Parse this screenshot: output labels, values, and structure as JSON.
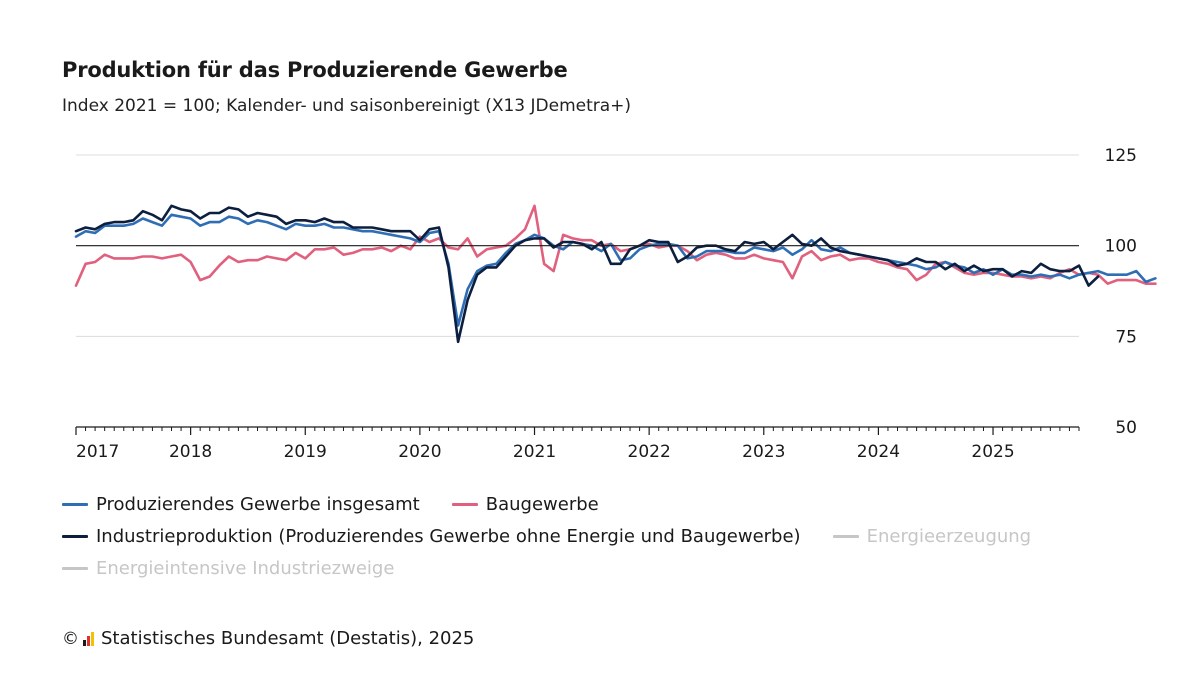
{
  "header": {
    "title": "Produktion für das Produzierende Gewerbe",
    "subtitle": "Index 2021 = 100; Kalender- und saisonbereinigt (X13 JDemetra+)"
  },
  "legend": {
    "items": [
      {
        "label": "Produzierendes Gewerbe insgesamt",
        "color": "#2f6eb5",
        "active": true
      },
      {
        "label": "Baugewerbe",
        "color": "#e0607e",
        "active": true
      },
      {
        "label": "Industrieproduktion (Produzierendes Gewerbe ohne Energie und Baugewerbe)",
        "color": "#0c1f3f",
        "active": true
      },
      {
        "label": "Energieerzeugung",
        "color": "#c6c6c6",
        "active": false
      },
      {
        "label": "Energieintensive Industriezweige",
        "color": "#c6c6c6",
        "active": false
      }
    ]
  },
  "footer": {
    "copyright_symbol": "©",
    "source": "Statistisches Bundesamt (Destatis), 2025"
  },
  "chart_data": {
    "type": "line",
    "x_start": "2017-01",
    "x_frequency": "monthly",
    "x_tick_labels": [
      "2017",
      "2018",
      "2019",
      "2020",
      "2021",
      "2022",
      "2023",
      "2024",
      "2025"
    ],
    "y_ticks": [
      50,
      75,
      100,
      125
    ],
    "ylim": [
      50,
      125
    ],
    "reference_line": 100,
    "grid": true,
    "series": [
      {
        "name": "Produzierendes Gewerbe insgesamt",
        "color": "#2f6eb5",
        "values": [
          102.5,
          104.0,
          103.5,
          105.5,
          105.5,
          105.5,
          106.0,
          107.5,
          106.5,
          105.5,
          108.5,
          108.0,
          107.5,
          105.5,
          106.5,
          106.5,
          108.0,
          107.5,
          106.0,
          107.0,
          106.5,
          105.5,
          104.5,
          106.0,
          105.5,
          105.5,
          106.0,
          105.0,
          105.0,
          104.5,
          104.0,
          104.0,
          103.5,
          103.0,
          102.5,
          102.0,
          101.0,
          103.5,
          104.0,
          95.0,
          78.0,
          88.0,
          93.0,
          94.5,
          95.0,
          98.0,
          100.5,
          101.5,
          103.0,
          102.0,
          100.0,
          99.0,
          101.0,
          100.5,
          100.0,
          98.5,
          100.5,
          96.0,
          96.5,
          99.0,
          100.0,
          100.5,
          100.5,
          100.0,
          96.5,
          97.0,
          98.5,
          98.5,
          98.5,
          98.0,
          98.0,
          99.5,
          99.0,
          98.5,
          99.5,
          97.5,
          99.0,
          101.5,
          99.0,
          98.5,
          99.5,
          98.0,
          97.5,
          97.0,
          96.5,
          96.0,
          95.5,
          95.0,
          94.5,
          93.5,
          94.0,
          95.5,
          94.5,
          94.0,
          92.5,
          93.5,
          92.0,
          93.5,
          92.0,
          92.0,
          91.5,
          92.0,
          91.5,
          92.0,
          91.0,
          92.0,
          92.5,
          93.0,
          92.0,
          92.0,
          92.0,
          93.0,
          90.0,
          91.0
        ]
      },
      {
        "name": "Baugewerbe",
        "color": "#e0607e",
        "values": [
          89.0,
          95.0,
          95.5,
          97.5,
          96.5,
          96.5,
          96.5,
          97.0,
          97.0,
          96.5,
          97.0,
          97.5,
          95.5,
          90.5,
          91.5,
          94.5,
          97.0,
          95.5,
          96.0,
          96.0,
          97.0,
          96.5,
          96.0,
          98.0,
          96.5,
          99.0,
          99.0,
          99.5,
          97.5,
          98.0,
          99.0,
          99.0,
          99.5,
          98.5,
          100.0,
          99.0,
          102.5,
          101.0,
          102.0,
          99.5,
          99.0,
          102.0,
          97.0,
          99.0,
          99.5,
          100.0,
          102.0,
          104.5,
          111.0,
          95.0,
          93.0,
          103.0,
          102.0,
          101.5,
          101.5,
          100.0,
          100.5,
          98.5,
          99.0,
          100.0,
          100.5,
          99.5,
          100.0,
          100.0,
          98.5,
          96.0,
          97.5,
          98.0,
          97.5,
          96.5,
          96.5,
          97.5,
          96.5,
          96.0,
          95.5,
          91.0,
          97.0,
          98.5,
          96.0,
          97.0,
          97.5,
          96.0,
          96.5,
          96.5,
          95.5,
          95.0,
          94.0,
          93.5,
          90.5,
          92.0,
          95.0,
          95.5,
          94.0,
          92.5,
          92.0,
          92.5,
          92.5,
          92.0,
          91.5,
          91.5,
          91.0,
          91.5,
          91.0,
          92.5,
          93.5,
          92.0,
          92.5,
          92.0,
          89.5,
          90.5,
          90.5,
          90.5,
          89.5,
          89.5
        ]
      },
      {
        "name": "Industrieproduktion (Produzierendes Gewerbe ohne Energie und Baugewerbe)",
        "color": "#0c1f3f",
        "values": [
          104.0,
          105.0,
          104.5,
          106.0,
          106.5,
          106.5,
          107.0,
          109.5,
          108.5,
          107.0,
          111.0,
          110.0,
          109.5,
          107.5,
          109.0,
          109.0,
          110.5,
          110.0,
          108.0,
          109.0,
          108.5,
          108.0,
          106.0,
          107.0,
          107.0,
          106.5,
          107.5,
          106.5,
          106.5,
          105.0,
          105.0,
          105.0,
          104.5,
          104.0,
          104.0,
          104.0,
          101.5,
          104.5,
          105.0,
          94.0,
          73.5,
          85.0,
          92.0,
          94.0,
          94.0,
          97.0,
          100.0,
          101.5,
          102.0,
          102.0,
          99.5,
          101.0,
          101.0,
          100.5,
          99.0,
          101.0,
          95.0,
          95.0,
          99.0,
          100.0,
          101.5,
          101.0,
          101.0,
          95.5,
          97.0,
          99.5,
          100.0,
          100.0,
          99.0,
          98.5,
          101.0,
          100.5,
          101.0,
          99.0,
          101.0,
          103.0,
          100.5,
          100.0,
          102.0,
          99.5,
          98.5,
          98.0,
          97.5,
          97.0,
          96.5,
          96.0,
          94.5,
          95.0,
          96.5,
          95.5,
          95.5,
          93.5,
          95.0,
          93.0,
          94.5,
          93.0,
          93.5,
          93.5,
          91.5,
          93.0,
          92.5,
          95.0,
          93.5,
          93.0,
          93.0,
          94.5,
          89.0,
          91.5
        ]
      }
    ]
  }
}
